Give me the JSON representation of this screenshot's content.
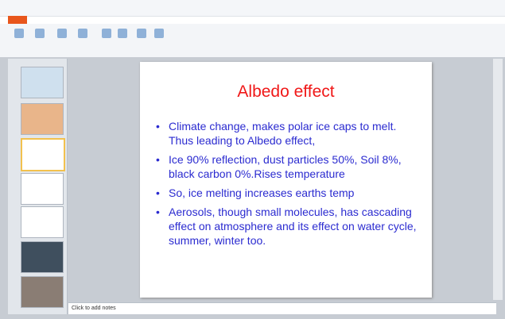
{
  "slide": {
    "title": "Albedo effect",
    "bullets": [
      "Climate change, makes polar ice caps to melt. Thus leading to Albedo effect,",
      "Ice 90% reflection, dust particles 50%, Soil 8%, black carbon 0%.Rises temperature",
      "So, ice melting increases earths temp",
      "Aerosols, though small molecules, has cascading effect on atmosphere and its effect on water cycle, summer, winter too."
    ]
  },
  "notes": {
    "placeholder": "Click to add notes"
  }
}
